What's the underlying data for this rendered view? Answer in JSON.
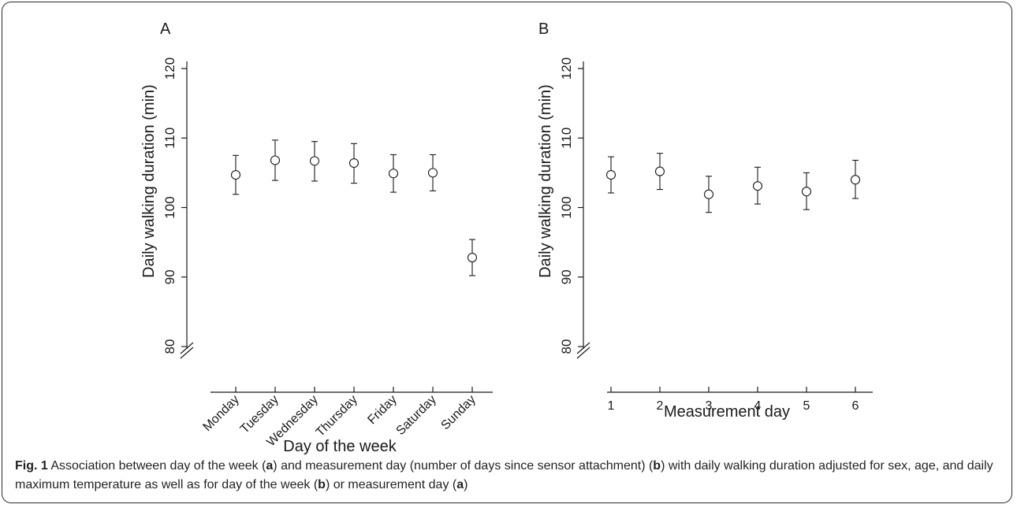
{
  "chart_data": [
    {
      "type": "scatter",
      "panel_label": "A",
      "title": "",
      "xlabel": "Day of the week",
      "ylabel": "Daily walking duration (min)",
      "categories": [
        "Monday",
        "Tuesday",
        "Wednesday",
        "Thursday",
        "Friday",
        "Saturday",
        "Sunday"
      ],
      "series": [
        {
          "values": [
            104.7,
            106.8,
            106.7,
            106.4,
            104.9,
            105.0,
            92.8
          ],
          "ci_low": [
            101.9,
            103.9,
            103.8,
            103.5,
            102.2,
            102.4,
            90.2
          ],
          "ci_high": [
            107.5,
            109.7,
            109.5,
            109.2,
            107.6,
            107.6,
            95.4
          ]
        }
      ],
      "yticks": [
        80,
        90,
        100,
        110,
        120
      ],
      "ylim": [
        78,
        122
      ],
      "y_axis_break": true,
      "grid": false
    },
    {
      "type": "scatter",
      "panel_label": "B",
      "title": "",
      "xlabel": "Measurement day",
      "ylabel": "Daily walking duration (min)",
      "categories": [
        "1",
        "2",
        "3",
        "4",
        "5",
        "6"
      ],
      "series": [
        {
          "values": [
            104.7,
            105.2,
            101.9,
            103.1,
            102.3,
            104.0
          ],
          "ci_low": [
            102.1,
            102.6,
            99.3,
            100.5,
            99.7,
            101.3
          ],
          "ci_high": [
            107.3,
            107.8,
            104.5,
            105.8,
            105.0,
            106.8
          ]
        }
      ],
      "yticks": [
        80,
        90,
        100,
        110,
        120
      ],
      "ylim": [
        78,
        122
      ],
      "y_axis_break": true,
      "grid": false
    }
  ],
  "caption": {
    "label": "Fig. 1",
    "segments": [
      {
        "text": " Association between day of the week (",
        "bold": false
      },
      {
        "text": "a",
        "bold": true
      },
      {
        "text": ") and measurement day (number of days since sensor attachment) (",
        "bold": false
      },
      {
        "text": "b",
        "bold": true
      },
      {
        "text": ") with daily walking duration adjusted for sex, age, and daily maximum temperature as well as for day of the week (",
        "bold": false
      },
      {
        "text": "b",
        "bold": true
      },
      {
        "text": ") or measurement day (",
        "bold": false
      },
      {
        "text": "a",
        "bold": true
      },
      {
        "text": ")",
        "bold": false
      }
    ]
  }
}
